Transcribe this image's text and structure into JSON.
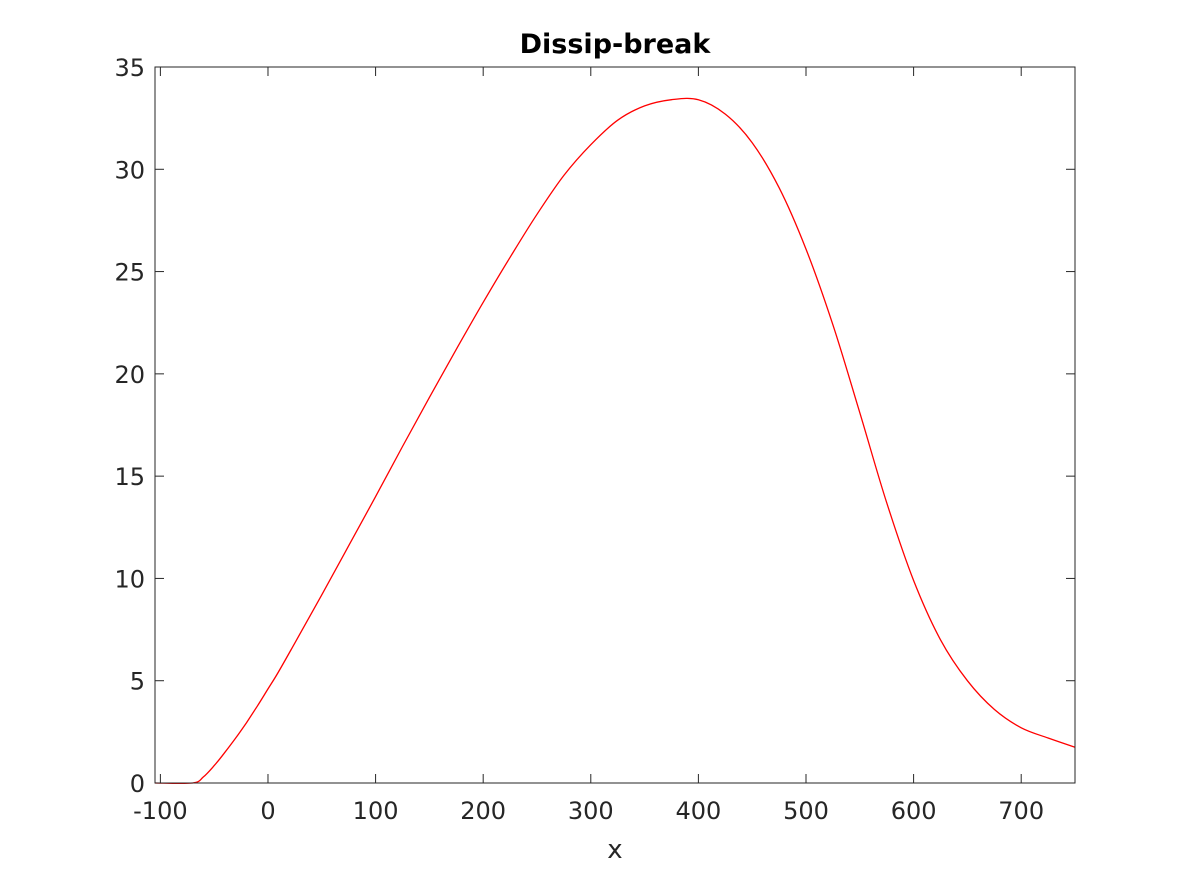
{
  "chart_data": {
    "type": "line",
    "title": "Dissip-break",
    "xlabel": "x",
    "ylabel": "",
    "xlim": [
      -105,
      750
    ],
    "ylim": [
      0,
      35
    ],
    "x_ticks": [
      -100,
      0,
      100,
      200,
      300,
      400,
      500,
      600,
      700
    ],
    "y_ticks": [
      0,
      5,
      10,
      15,
      20,
      25,
      30,
      35
    ],
    "x_tick_labels": [
      "-100",
      "0",
      "100",
      "200",
      "300",
      "400",
      "500",
      "600",
      "700"
    ],
    "y_tick_labels": [
      "0",
      "5",
      "10",
      "15",
      "20",
      "25",
      "30",
      "35"
    ],
    "grid": false,
    "series": [
      {
        "color": "#ff0000",
        "x": [
          -105,
          -70,
          -60,
          -50,
          -40,
          -30,
          -20,
          -10,
          0,
          10,
          25,
          50,
          75,
          100,
          125,
          150,
          175,
          200,
          225,
          250,
          275,
          300,
          325,
          350,
          375,
          400,
          425,
          450,
          475,
          500,
          525,
          550,
          575,
          600,
          625,
          650,
          675,
          700,
          725,
          750
        ],
        "y": [
          0,
          0,
          0.3,
          0.85,
          1.5,
          2.2,
          2.95,
          3.75,
          4.6,
          5.45,
          6.85,
          9.2,
          11.6,
          14.0,
          16.45,
          18.85,
          21.2,
          23.5,
          25.7,
          27.8,
          29.7,
          31.2,
          32.4,
          33.1,
          33.4,
          33.4,
          32.7,
          31.3,
          29.1,
          26.1,
          22.4,
          18.1,
          13.7,
          9.9,
          7.0,
          5.0,
          3.6,
          2.7,
          2.2,
          1.75
        ]
      }
    ]
  }
}
